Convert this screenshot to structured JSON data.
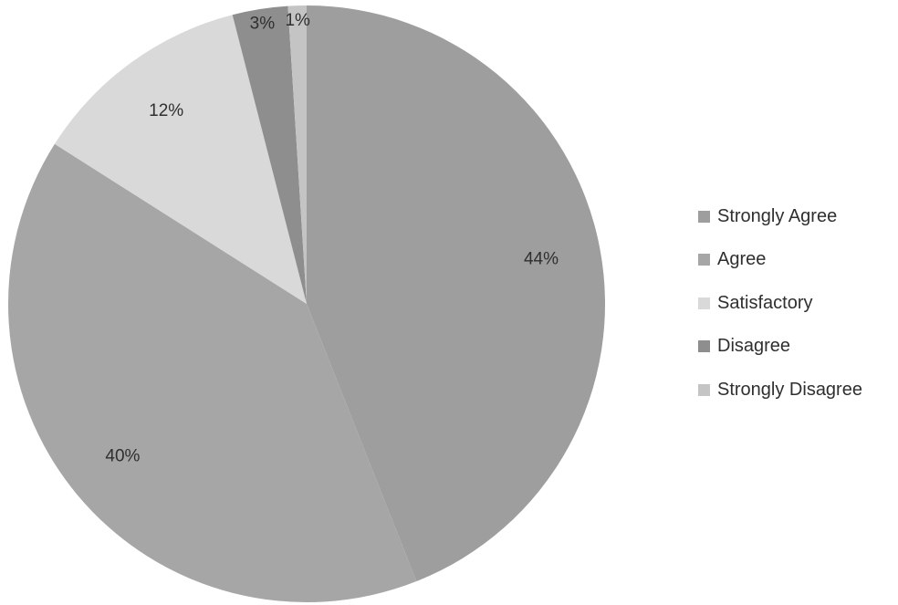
{
  "chart_data": {
    "type": "pie",
    "title": "",
    "categories": [
      "Strongly Agree",
      "Agree",
      "Satisfactory",
      "Disagree",
      "Strongly Disagree"
    ],
    "values": [
      44,
      40,
      12,
      3,
      1
    ],
    "labels": [
      "44%",
      "40%",
      "12%",
      "3%",
      "1%"
    ],
    "colors": [
      "#9e9e9e",
      "#a6a6a6",
      "#d9d9d9",
      "#8e8e8e",
      "#c4c4c4"
    ],
    "start_angle_deg": 0,
    "direction": "clockwise",
    "legend_position": "right",
    "legend": [
      {
        "label": "Strongly Agree",
        "color": "#9e9e9e"
      },
      {
        "label": "Agree",
        "color": "#a6a6a6"
      },
      {
        "label": "Satisfactory",
        "color": "#d9d9d9"
      },
      {
        "label": "Disagree",
        "color": "#8e8e8e"
      },
      {
        "label": "Strongly Disagree",
        "color": "#c4c4c4"
      }
    ]
  }
}
